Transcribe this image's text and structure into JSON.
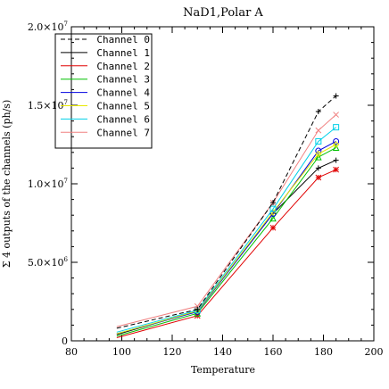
{
  "chart_data": {
    "type": "line",
    "title": "NaD1,Polar A",
    "xlabel": "Temperature",
    "ylabel": "Σ 4 outputs of the channels (ph/s)",
    "xlim": [
      80,
      200
    ],
    "ylim": [
      0,
      20000000
    ],
    "x_ticks": [
      "80",
      "100",
      "120",
      "140",
      "160",
      "180",
      "200"
    ],
    "x_tick_values": [
      80,
      100,
      120,
      140,
      160,
      180,
      200
    ],
    "y_ticks": [
      {
        "value": 0,
        "mant": "0",
        "exp": ""
      },
      {
        "value": 5000000,
        "mant": "5.0×10",
        "exp": "6"
      },
      {
        "value": 10000000,
        "mant": "1.0×10",
        "exp": "7"
      },
      {
        "value": 15000000,
        "mant": "1.5×10",
        "exp": "7"
      },
      {
        "value": 20000000,
        "mant": "2.0×10",
        "exp": "7"
      }
    ],
    "grid": false,
    "legend_position": "top-left",
    "x": [
      98,
      130,
      160,
      178,
      185
    ],
    "series": [
      {
        "name": "Channel 0",
        "color": "#000000",
        "dash": "5,3",
        "marker": "plus",
        "values": [
          800000,
          2000000,
          8800000,
          14600000,
          15600000
        ]
      },
      {
        "name": "Channel 1",
        "color": "#000000",
        "dash": "",
        "marker": "plus",
        "values": [
          400000,
          1900000,
          8100000,
          11000000,
          11500000
        ]
      },
      {
        "name": "Channel 2",
        "color": "#e00000",
        "dash": "",
        "marker": "asterisk",
        "values": [
          200000,
          1600000,
          7200000,
          10400000,
          10900000
        ]
      },
      {
        "name": "Channel 3",
        "color": "#00c000",
        "dash": "",
        "marker": "triangle",
        "values": [
          300000,
          1750000,
          7800000,
          11700000,
          12300000
        ]
      },
      {
        "name": "Channel 4",
        "color": "#0000e0",
        "dash": "",
        "marker": "circle",
        "values": [
          450000,
          1850000,
          8100000,
          12100000,
          12700000
        ]
      },
      {
        "name": "Channel 5",
        "color": "#e8e800",
        "dash": "",
        "marker": "diamond",
        "values": [
          450000,
          1900000,
          8200000,
          11900000,
          12500000
        ]
      },
      {
        "name": "Channel 6",
        "color": "#00d0e8",
        "dash": "",
        "marker": "square",
        "values": [
          550000,
          1950000,
          8400000,
          12700000,
          13600000
        ]
      },
      {
        "name": "Channel 7",
        "color": "#f08080",
        "dash": "",
        "marker": "x",
        "values": [
          900000,
          2200000,
          8800000,
          13400000,
          14400000
        ]
      }
    ]
  }
}
